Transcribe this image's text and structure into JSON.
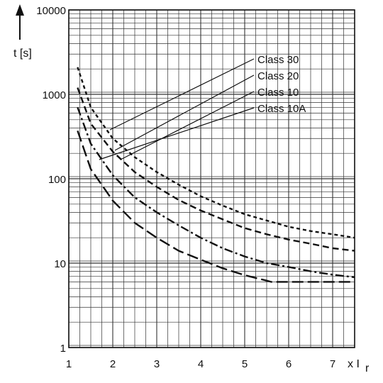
{
  "chart_data": {
    "type": "line",
    "title": "",
    "xlabel": "x I",
    "xlabel_sub": "r",
    "ylabel": "t [s]",
    "y_scale": "log",
    "xlim": [
      1,
      7.5
    ],
    "ylim": [
      1,
      10000
    ],
    "grid": true,
    "x_ticks": [
      "1",
      "2",
      "3",
      "4",
      "5",
      "6",
      "7"
    ],
    "y_ticks": [
      "1",
      "10",
      "100",
      "1000",
      "10000"
    ],
    "series": [
      {
        "name": "Class 30",
        "dash": "short-dash",
        "points": [
          [
            1.2,
            2100
          ],
          [
            1.5,
            700
          ],
          [
            2,
            300
          ],
          [
            2.5,
            180
          ],
          [
            3,
            120
          ],
          [
            3.5,
            85
          ],
          [
            4,
            62
          ],
          [
            4.5,
            48
          ],
          [
            5,
            38
          ],
          [
            5.5,
            32
          ],
          [
            6,
            27
          ],
          [
            6.5,
            24
          ],
          [
            7,
            22
          ],
          [
            7.5,
            20
          ]
        ]
      },
      {
        "name": "Class 20",
        "dash": "dash",
        "points": [
          [
            1.2,
            1200
          ],
          [
            1.5,
            450
          ],
          [
            2,
            210
          ],
          [
            2.5,
            120
          ],
          [
            3,
            80
          ],
          [
            3.5,
            56
          ],
          [
            4,
            42
          ],
          [
            4.5,
            33
          ],
          [
            5,
            26
          ],
          [
            5.5,
            22
          ],
          [
            6,
            19
          ],
          [
            6.5,
            17
          ],
          [
            7,
            15
          ],
          [
            7.5,
            14
          ]
        ]
      },
      {
        "name": "Class 10",
        "dash": "dash-dot",
        "points": [
          [
            1.2,
            700
          ],
          [
            1.5,
            260
          ],
          [
            2,
            110
          ],
          [
            2.5,
            60
          ],
          [
            3,
            40
          ],
          [
            3.5,
            28
          ],
          [
            4,
            20
          ],
          [
            4.5,
            15
          ],
          [
            5,
            12
          ],
          [
            5.5,
            10
          ],
          [
            6,
            9
          ],
          [
            6.5,
            8
          ],
          [
            7,
            7.3
          ],
          [
            7.5,
            6.8
          ]
        ]
      },
      {
        "name": "Class 10A",
        "dash": "long-dash",
        "points": [
          [
            1.2,
            370
          ],
          [
            1.5,
            130
          ],
          [
            2,
            55
          ],
          [
            2.5,
            30
          ],
          [
            3,
            20
          ],
          [
            3.5,
            14
          ],
          [
            4,
            11
          ],
          [
            4.5,
            8.7
          ],
          [
            5,
            7.2
          ],
          [
            5.5,
            6.2
          ],
          [
            5.6,
            6
          ],
          [
            6,
            6
          ],
          [
            7,
            6
          ],
          [
            7.5,
            6
          ]
        ]
      }
    ],
    "legend_order": [
      "Class 30",
      "Class 20",
      "Class 10",
      "Class 10A"
    ]
  }
}
